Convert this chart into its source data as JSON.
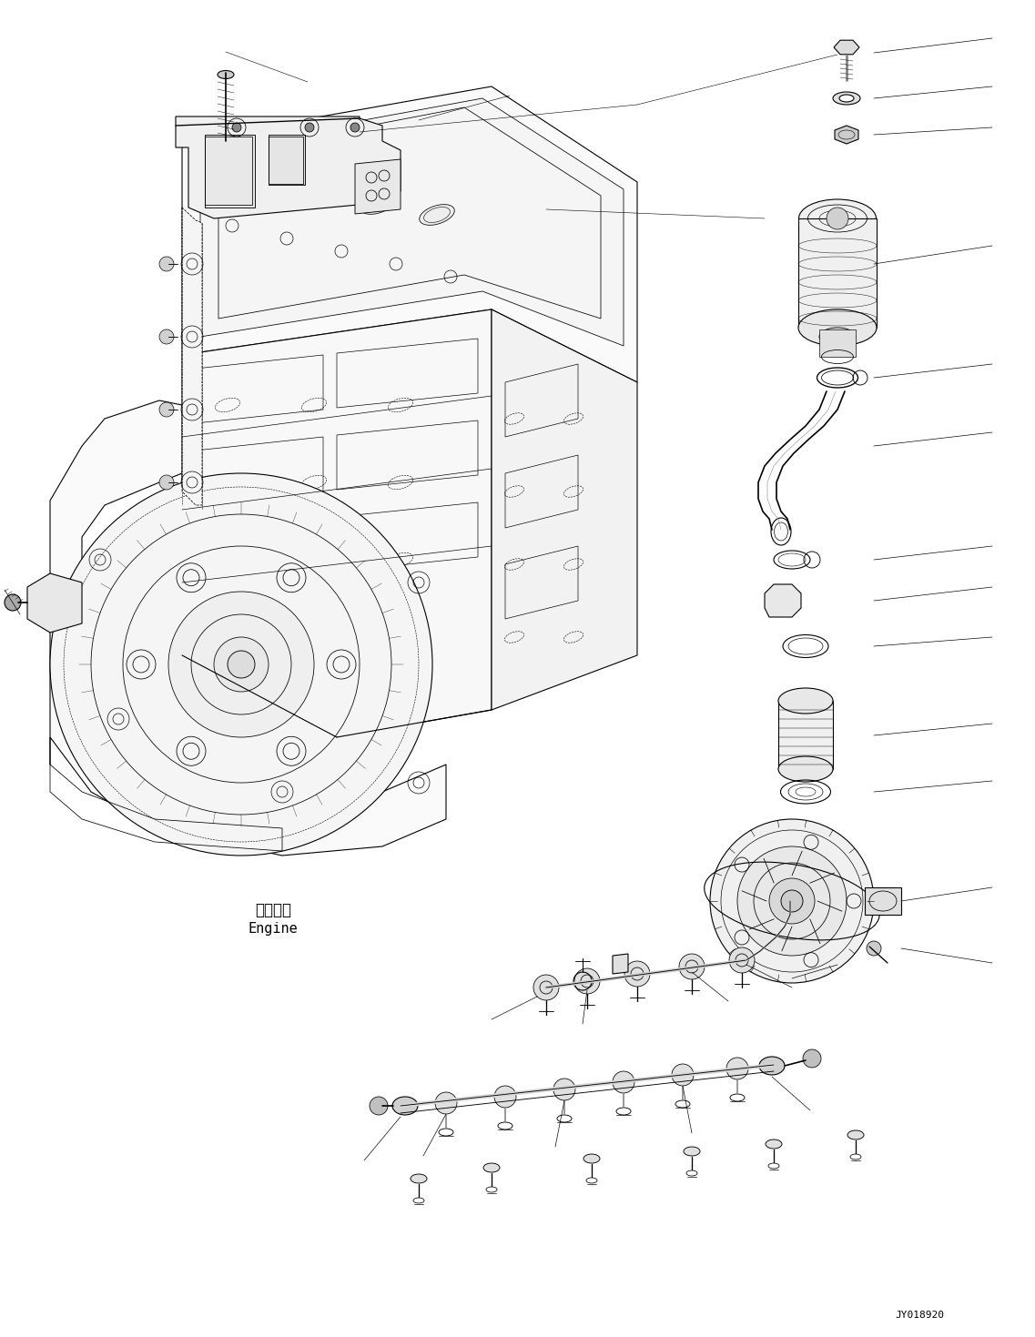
{
  "background_color": "#ffffff",
  "image_code": "JY018920",
  "engine_label_jp": "エンジン",
  "engine_label_en": "Engine",
  "line_color": "#000000",
  "line_width": 0.8,
  "fig_width": 11.37,
  "fig_height": 14.69,
  "dpi": 100
}
